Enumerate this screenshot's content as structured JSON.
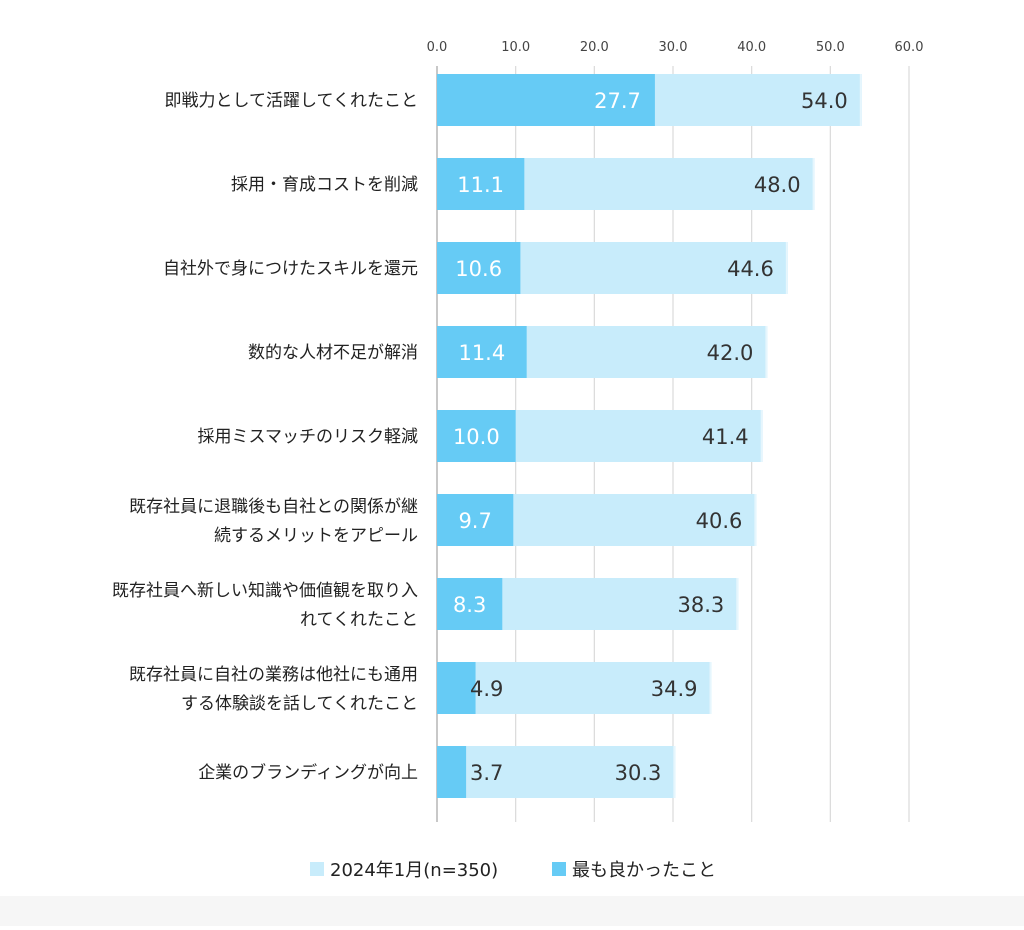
{
  "chart_data": {
    "type": "bar",
    "orientation": "horizontal",
    "categories": [
      [
        "即戦力として活躍してくれたこと"
      ],
      [
        "採用・育成コストを削減"
      ],
      [
        "自社外で身につけたスキルを還元"
      ],
      [
        "数的な人材不足が解消"
      ],
      [
        "採用ミスマッチのリスク軽減"
      ],
      [
        "既存社員に退職後も自社との関係が継",
        "続するメリットをアピール"
      ],
      [
        "既存社員へ新しい知識や価値観を取り入",
        "れてくれたこと"
      ],
      [
        "既存社員に自社の業務は他社にも通用",
        "する体験談を話してくれたこと"
      ],
      [
        "企業のブランディングが向上"
      ]
    ],
    "series": [
      {
        "name": "2024年1月(n=350)",
        "color": "#c8ecfb",
        "label_color": "#333333",
        "values": [
          54.0,
          48.0,
          44.6,
          42.0,
          41.4,
          40.6,
          38.3,
          34.9,
          30.3
        ],
        "labels": [
          "54.0",
          "48.0",
          "44.6",
          "42.0",
          "41.4",
          "40.6",
          "38.3",
          "34.9",
          "30.3"
        ]
      },
      {
        "name": "最も良かったこと",
        "color": "#66cbf5",
        "label_color": "#ffffff",
        "values": [
          27.7,
          11.1,
          10.6,
          11.4,
          10.0,
          9.7,
          8.3,
          4.9,
          3.7
        ],
        "labels": [
          "27.7",
          "11.1",
          "10.6",
          "11.4",
          "10.0",
          "9.7",
          "8.3",
          "4.9",
          "3.7"
        ]
      }
    ],
    "xlim": [
      0,
      60
    ],
    "x_ticks": [
      0,
      10,
      20,
      30,
      40,
      50,
      60
    ],
    "x_tick_labels": [
      "0.0",
      "10.0",
      "20.0",
      "30.0",
      "40.0",
      "50.0",
      "60.0"
    ],
    "axis_position": "top",
    "grid": true,
    "legend_position": "bottom"
  }
}
